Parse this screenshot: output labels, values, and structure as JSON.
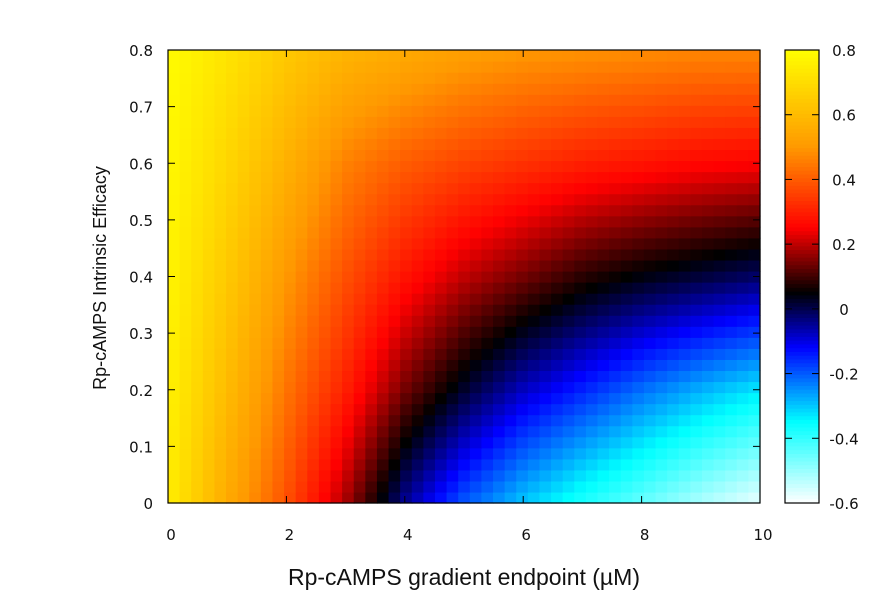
{
  "chart_data": {
    "type": "heatmap",
    "title": "",
    "xlabel": "Rp-cAMPS gradient endpoint (µM)",
    "ylabel": "Rp-cAMPS Intrinsic Efficacy",
    "xlim": [
      0,
      10
    ],
    "ylim": [
      0,
      0.8
    ],
    "x_ticks": [
      "0",
      "2",
      "4",
      "6",
      "8",
      "10"
    ],
    "y_ticks": [
      "0",
      "0.1",
      "0.2",
      "0.3",
      "0.4",
      "0.5",
      "0.6",
      "0.7",
      "0.8"
    ],
    "grid": false,
    "colorbar": {
      "range": [
        -0.6,
        0.8
      ],
      "ticks": [
        "0.8",
        "0.6",
        "0.4",
        "0.2",
        "0",
        "-0.2",
        "-0.4",
        "-0.6"
      ],
      "colormap": [
        {
          "value": -0.6,
          "color": "#ffffff"
        },
        {
          "value": -0.35,
          "color": "#00ffff"
        },
        {
          "value": -0.12,
          "color": "#0000ff"
        },
        {
          "value": 0.05,
          "color": "#000000"
        },
        {
          "value": 0.25,
          "color": "#ff0000"
        },
        {
          "value": 0.5,
          "color": "#ff9900"
        },
        {
          "value": 0.8,
          "color": "#ffff00"
        }
      ]
    },
    "grid_resolution": {
      "nx": 51,
      "ny": 41
    },
    "surface_samples": {
      "x": [
        0,
        1,
        2,
        3,
        4,
        5,
        6,
        7,
        8,
        9,
        10
      ],
      "y": [
        0,
        0.2,
        0.4,
        0.6,
        0.8
      ],
      "values": [
        [
          0.75,
          0.55,
          0.38,
          0.18,
          -0.05,
          -0.2,
          -0.3,
          -0.38,
          -0.45,
          -0.52,
          -0.58
        ],
        [
          0.76,
          0.6,
          0.44,
          0.3,
          0.14,
          0.02,
          -0.08,
          -0.15,
          -0.22,
          -0.28,
          -0.33
        ],
        [
          0.77,
          0.64,
          0.5,
          0.38,
          0.28,
          0.2,
          0.14,
          0.08,
          0.04,
          0.01,
          -0.02
        ],
        [
          0.78,
          0.68,
          0.57,
          0.46,
          0.4,
          0.36,
          0.33,
          0.3,
          0.28,
          0.26,
          0.25
        ],
        [
          0.79,
          0.72,
          0.64,
          0.58,
          0.55,
          0.52,
          0.5,
          0.49,
          0.48,
          0.47,
          0.47
        ]
      ]
    }
  }
}
